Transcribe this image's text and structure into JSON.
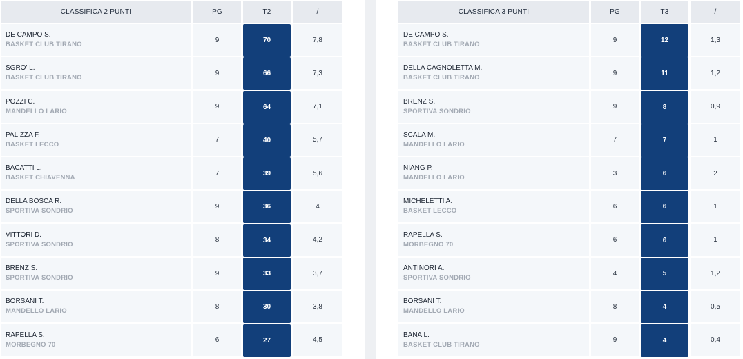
{
  "left_table": {
    "headers": [
      "CLASSIFICA 2 PUNTI",
      "PG",
      "T2",
      "/"
    ],
    "rows": [
      {
        "name": "DE CAMPO S.",
        "team": "BASKET CLUB TIRANO",
        "pg": "9",
        "val": "70",
        "avg": "7,8"
      },
      {
        "name": "SGRO' L.",
        "team": "BASKET CLUB TIRANO",
        "pg": "9",
        "val": "66",
        "avg": "7,3"
      },
      {
        "name": "POZZI C.",
        "team": "MANDELLO LARIO",
        "pg": "9",
        "val": "64",
        "avg": "7,1"
      },
      {
        "name": "PALIZZA F.",
        "team": "BASKET LECCO",
        "pg": "7",
        "val": "40",
        "avg": "5,7"
      },
      {
        "name": "BACATTI L.",
        "team": "BASKET CHIAVENNA",
        "pg": "7",
        "val": "39",
        "avg": "5,6"
      },
      {
        "name": "DELLA BOSCA R.",
        "team": "SPORTIVA SONDRIO",
        "pg": "9",
        "val": "36",
        "avg": "4"
      },
      {
        "name": "VITTORI D.",
        "team": "SPORTIVA SONDRIO",
        "pg": "8",
        "val": "34",
        "avg": "4,2"
      },
      {
        "name": "BRENZ S.",
        "team": "SPORTIVA SONDRIO",
        "pg": "9",
        "val": "33",
        "avg": "3,7"
      },
      {
        "name": "BORSANI T.",
        "team": "MANDELLO LARIO",
        "pg": "8",
        "val": "30",
        "avg": "3,8"
      },
      {
        "name": "RAPELLA S.",
        "team": "MORBEGNO 70",
        "pg": "6",
        "val": "27",
        "avg": "4,5"
      }
    ]
  },
  "right_table": {
    "headers": [
      "CLASSIFICA 3 PUNTI",
      "PG",
      "T3",
      "/"
    ],
    "rows": [
      {
        "name": "DE CAMPO S.",
        "team": "BASKET CLUB TIRANO",
        "pg": "9",
        "val": "12",
        "avg": "1,3"
      },
      {
        "name": "DELLA CAGNOLETTA M.",
        "team": "BASKET CLUB TIRANO",
        "pg": "9",
        "val": "11",
        "avg": "1,2"
      },
      {
        "name": "BRENZ S.",
        "team": "SPORTIVA SONDRIO",
        "pg": "9",
        "val": "8",
        "avg": "0,9"
      },
      {
        "name": "SCALA M.",
        "team": "MANDELLO LARIO",
        "pg": "7",
        "val": "7",
        "avg": "1"
      },
      {
        "name": "NIANG P.",
        "team": "MANDELLO LARIO",
        "pg": "3",
        "val": "6",
        "avg": "2"
      },
      {
        "name": "MICHELETTI A.",
        "team": "BASKET LECCO",
        "pg": "6",
        "val": "6",
        "avg": "1"
      },
      {
        "name": "RAPELLA S.",
        "team": "MORBEGNO 70",
        "pg": "6",
        "val": "6",
        "avg": "1"
      },
      {
        "name": "ANTINORI A.",
        "team": "SPORTIVA SONDRIO",
        "pg": "4",
        "val": "5",
        "avg": "1,2"
      },
      {
        "name": "BORSANI T.",
        "team": "MANDELLO LARIO",
        "pg": "8",
        "val": "4",
        "avg": "0,5"
      },
      {
        "name": "BANA L.",
        "team": "BASKET CLUB TIRANO",
        "pg": "9",
        "val": "4",
        "avg": "0,4"
      }
    ]
  },
  "colors": {
    "highlight": "#123f7a",
    "header_bg": "#e7eaef",
    "row_bg": "#f4f7fa",
    "team_text": "#a2a9b3"
  }
}
